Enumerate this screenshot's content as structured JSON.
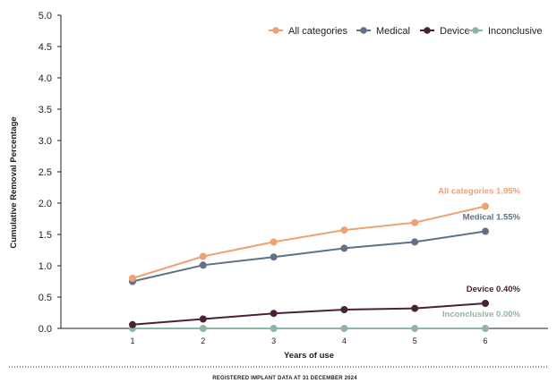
{
  "chart_data": {
    "type": "line",
    "x": [
      1,
      2,
      3,
      4,
      5,
      6
    ],
    "xlabel": "Years of use",
    "ylabel": "Cumulative Removal Percentage",
    "ylim": [
      0,
      5.0
    ],
    "yticks": [
      "0.0",
      "0.5",
      "1.0",
      "1.5",
      "2.0",
      "2.5",
      "3.0",
      "3.5",
      "4.0",
      "4.5",
      "5.0"
    ],
    "xticks": [
      "1",
      "2",
      "3",
      "4",
      "5",
      "6"
    ],
    "legend_position": "top-right",
    "grid": false,
    "series": [
      {
        "name": "All categories",
        "color": "#f0a071",
        "values": [
          0.8,
          1.15,
          1.38,
          1.57,
          1.69,
          1.95
        ],
        "end_label": "All categories 1.95%"
      },
      {
        "name": "Medical",
        "color": "#5f7088",
        "values": [
          0.75,
          1.01,
          1.14,
          1.28,
          1.38,
          1.55
        ],
        "end_label": "Medical 1.55%"
      },
      {
        "name": "Device",
        "color": "#4a2139",
        "values": [
          0.06,
          0.15,
          0.24,
          0.3,
          0.32,
          0.4
        ],
        "end_label": "Device 0.40%"
      },
      {
        "name": "Inconclusive",
        "color": "#8fb5a5",
        "values": [
          0.0,
          0.0,
          0.0,
          0.0,
          0.0,
          0.0
        ],
        "end_label": "Inconclusive 0.00%"
      }
    ]
  },
  "footer": {
    "text": "REGISTERED IMPLANT DATA AT 31 DECEMBER 2024"
  }
}
